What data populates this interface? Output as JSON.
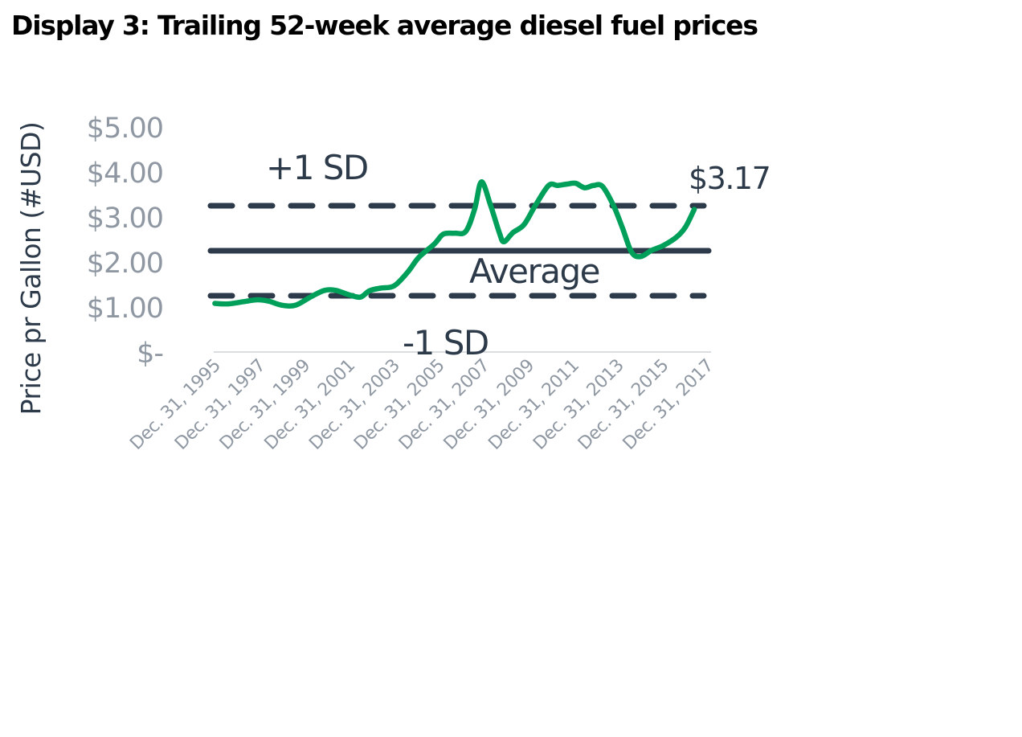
{
  "title": "Display 3:  Trailing 52-week average diesel fuel prices",
  "chart_data": {
    "type": "line",
    "title": "Display 3:  Trailing 52-week average diesel fuel prices",
    "xlabel": "",
    "ylabel": "Price pr Gallon (#USD)",
    "ylim": [
      0,
      5
    ],
    "yticks": [
      {
        "value": 0,
        "label": "$-"
      },
      {
        "value": 1,
        "label": "$1.00"
      },
      {
        "value": 2,
        "label": "$2.00"
      },
      {
        "value": 3,
        "label": "$3.00"
      },
      {
        "value": 4,
        "label": "$4.00"
      },
      {
        "value": 5,
        "label": "$5.00"
      }
    ],
    "xlim": [
      1995.95,
      2018.15
    ],
    "xticks": [
      {
        "value": 1996,
        "label": "Dec. 31, 1995"
      },
      {
        "value": 1998,
        "label": "Dec. 31, 1997"
      },
      {
        "value": 2000,
        "label": "Dec. 31, 1999"
      },
      {
        "value": 2002,
        "label": "Dec. 31, 2001"
      },
      {
        "value": 2004,
        "label": "Dec. 31, 2003"
      },
      {
        "value": 2006,
        "label": "Dec. 31, 2005"
      },
      {
        "value": 2008,
        "label": "Dec. 31, 2007"
      },
      {
        "value": 2010,
        "label": "Dec. 31, 2009"
      },
      {
        "value": 2012,
        "label": "Dec. 31, 2011"
      },
      {
        "value": 2014,
        "label": "Dec. 31, 2013"
      },
      {
        "value": 2016,
        "label": "Dec. 31, 2015"
      },
      {
        "value": 2018,
        "label": "Dec. 31, 2017"
      }
    ],
    "grid": false,
    "series": [
      {
        "color": "#00a05a",
        "points": [
          [
            1996.0,
            1.08
          ],
          [
            1996.6,
            1.07
          ],
          [
            1997.3,
            1.12
          ],
          [
            1997.9,
            1.16
          ],
          [
            1998.4,
            1.13
          ],
          [
            1999.0,
            1.04
          ],
          [
            1999.6,
            1.04
          ],
          [
            2000.3,
            1.23
          ],
          [
            2000.9,
            1.37
          ],
          [
            2001.4,
            1.37
          ],
          [
            2002.0,
            1.27
          ],
          [
            2002.5,
            1.22
          ],
          [
            2002.9,
            1.36
          ],
          [
            2003.4,
            1.42
          ],
          [
            2004.0,
            1.47
          ],
          [
            2004.6,
            1.77
          ],
          [
            2005.1,
            2.1
          ],
          [
            2005.8,
            2.4
          ],
          [
            2006.2,
            2.62
          ],
          [
            2006.7,
            2.64
          ],
          [
            2007.2,
            2.68
          ],
          [
            2007.6,
            3.18
          ],
          [
            2007.9,
            3.78
          ],
          [
            2008.3,
            3.27
          ],
          [
            2008.7,
            2.65
          ],
          [
            2008.9,
            2.45
          ],
          [
            2009.3,
            2.65
          ],
          [
            2009.8,
            2.83
          ],
          [
            2010.3,
            3.25
          ],
          [
            2010.9,
            3.7
          ],
          [
            2011.3,
            3.7
          ],
          [
            2011.7,
            3.73
          ],
          [
            2012.1,
            3.75
          ],
          [
            2012.5,
            3.65
          ],
          [
            2012.9,
            3.7
          ],
          [
            2013.3,
            3.68
          ],
          [
            2013.8,
            3.25
          ],
          [
            2014.2,
            2.75
          ],
          [
            2014.6,
            2.22
          ],
          [
            2015.0,
            2.12
          ],
          [
            2015.5,
            2.26
          ],
          [
            2016.0,
            2.36
          ],
          [
            2016.6,
            2.55
          ],
          [
            2017.0,
            2.77
          ],
          [
            2017.4,
            3.17
          ]
        ]
      }
    ],
    "reference_lines": [
      {
        "label": "Average",
        "value": 2.25,
        "style": "solid",
        "color": "#2c3a4a"
      },
      {
        "label": "+1 SD",
        "value": 3.25,
        "style": "dashed",
        "color": "#2c3a4a"
      },
      {
        "label": "-1 SD",
        "value": 1.25,
        "style": "dashed",
        "color": "#2c3a4a"
      }
    ],
    "end_label": "$3.17",
    "legend": "none"
  }
}
